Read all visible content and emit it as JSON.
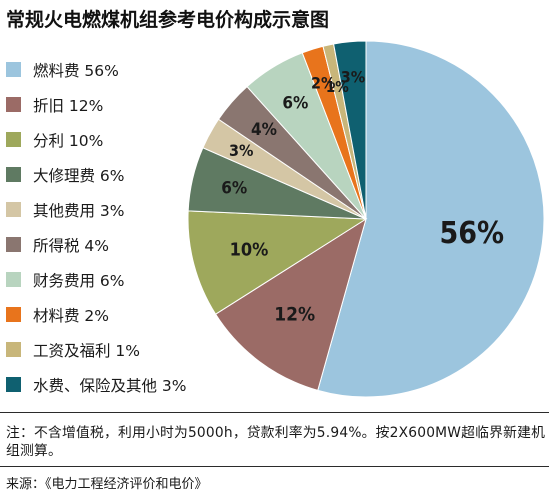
{
  "title": "常规火电燃煤机组参考电价构成示意图",
  "legend": [
    {
      "label": "燃料费 56%",
      "color": "#9cc5de"
    },
    {
      "label": "折旧 12%",
      "color": "#9b6b66"
    },
    {
      "label": "分利 10%",
      "color": "#9ea85c"
    },
    {
      "label": "大修理费 6%",
      "color": "#5f7a62"
    },
    {
      "label": "其他费用 3%",
      "color": "#d4c6a5"
    },
    {
      "label": "所得税 4%",
      "color": "#8a7670"
    },
    {
      "label": "财务费用 6%",
      "color": "#b8d4bf"
    },
    {
      "label": "材料费 2%",
      "color": "#e8741c"
    },
    {
      "label": "工资及福利 1%",
      "color": "#c8b67a"
    },
    {
      "label": "水费、保险及其他 3%",
      "color": "#0f6070"
    }
  ],
  "chart_data": {
    "type": "pie",
    "title": "常规火电燃煤机组参考电价构成示意图",
    "start_angle_deg": 0,
    "direction": "clockwise",
    "slices": [
      {
        "name": "燃料费",
        "value": 56,
        "label": "56%",
        "color": "#9cc5de"
      },
      {
        "name": "折旧",
        "value": 12,
        "label": "12%",
        "color": "#9b6b66"
      },
      {
        "name": "分利",
        "value": 10,
        "label": "10%",
        "color": "#9ea85c"
      },
      {
        "name": "大修理费",
        "value": 6,
        "label": "6%",
        "color": "#5f7a62"
      },
      {
        "name": "其他费用",
        "value": 3,
        "label": "3%",
        "color": "#d4c6a5"
      },
      {
        "name": "所得税",
        "value": 4,
        "label": "4%",
        "color": "#8a7670"
      },
      {
        "name": "财务费用",
        "value": 6,
        "label": "6%",
        "color": "#b8d4bf"
      },
      {
        "name": "材料费",
        "value": 2,
        "label": "2%",
        "color": "#e8741c"
      },
      {
        "name": "工资及福利",
        "value": 1,
        "label": "1%",
        "color": "#c8b67a"
      },
      {
        "name": "水费、保险及其他",
        "value": 3,
        "label": "3%",
        "color": "#0f6070"
      }
    ]
  },
  "note": "注：不含增值税，利用小时为5000h，贷款利率为5.94%。按2X600MW超临界新建机组测算。",
  "source": "来源：《电力工程经济评价和电价》"
}
